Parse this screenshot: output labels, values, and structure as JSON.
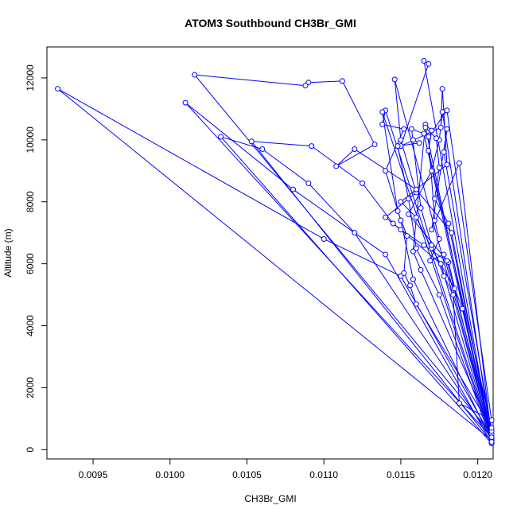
{
  "chart_data": {
    "type": "line",
    "title": "ATOM3 Southbound CH3Br_GMI",
    "xlabel": "CH3Br_GMI",
    "ylabel": "Altitude (m)",
    "xlim": [
      0.0092,
      0.0121
    ],
    "ylim": [
      -300,
      13000
    ],
    "x_ticks": [
      0.0095,
      0.01,
      0.0105,
      0.011,
      0.0115,
      0.012
    ],
    "x_tick_labels": [
      "0.0095",
      "0.0100",
      "0.0105",
      "0.0110",
      "0.0115",
      "0.0120"
    ],
    "y_ticks": [
      0,
      2000,
      4000,
      6000,
      8000,
      10000,
      12000
    ],
    "y_tick_labels": [
      "0",
      "2000",
      "4000",
      "6000",
      "8000",
      "10000",
      "12000"
    ],
    "grid": false,
    "legend": "none",
    "series": [
      {
        "color": "#0000ff",
        "marker": "open-circle",
        "points": [
          [
            0.01209,
            300
          ],
          [
            0.0119,
            4550
          ],
          [
            0.01185,
            5200
          ],
          [
            0.0117,
            6500
          ],
          [
            0.0116,
            7500
          ],
          [
            0.0115,
            8000
          ],
          [
            0.0118,
            9200
          ],
          [
            0.01177,
            11650
          ],
          [
            0.01176,
            10400
          ],
          [
            0.0115,
            9800
          ],
          [
            0.01168,
            12450
          ],
          [
            0.01165,
            12550
          ],
          [
            0.01209,
            250
          ],
          [
            0.01181,
            6050
          ],
          [
            0.01165,
            6600
          ],
          [
            0.0115,
            7100
          ],
          [
            0.0114,
            7500
          ],
          [
            0.0116,
            8300
          ],
          [
            0.0115,
            10000
          ],
          [
            0.01146,
            11950
          ],
          [
            0.01209,
            350
          ],
          [
            0.0112,
            7000
          ],
          [
            0.0109,
            8600
          ],
          [
            0.0106,
            9700
          ],
          [
            0.01033,
            10100
          ],
          [
            0.01209,
            200
          ],
          [
            0.0114,
            6300
          ],
          [
            0.0108,
            8400
          ],
          [
            0.0101,
            11200
          ],
          [
            0.01209,
            400
          ],
          [
            0.0115,
            5600
          ],
          [
            0.011,
            6800
          ],
          [
            0.00927,
            11650
          ],
          [
            0.01209,
            300
          ],
          [
            0.01176,
            6000
          ],
          [
            0.01145,
            7300
          ],
          [
            0.01125,
            8600
          ],
          [
            0.01092,
            9800
          ],
          [
            0.01053,
            9950
          ],
          [
            0.01209,
            250
          ],
          [
            0.01183,
            7000
          ],
          [
            0.0116,
            8400
          ],
          [
            0.0112,
            9700
          ],
          [
            0.01108,
            9150
          ],
          [
            0.01133,
            9850
          ],
          [
            0.01112,
            11900
          ],
          [
            0.0109,
            11850
          ],
          [
            0.01088,
            11750
          ],
          [
            0.01016,
            12100
          ],
          [
            0.01209,
            500
          ],
          [
            0.0118,
            6100
          ],
          [
            0.01155,
            7600
          ],
          [
            0.0117,
            9000
          ],
          [
            0.01175,
            10000
          ],
          [
            0.01177,
            10900
          ],
          [
            0.01209,
            280
          ],
          [
            0.01158,
            5500
          ],
          [
            0.0115,
            7400
          ],
          [
            0.0114,
            9000
          ],
          [
            0.01152,
            10350
          ],
          [
            0.01138,
            10500
          ],
          [
            0.0114,
            10950
          ],
          [
            0.01209,
            350
          ],
          [
            0.01188,
            9250
          ],
          [
            0.0117,
            7100
          ],
          [
            0.0118,
            10350
          ],
          [
            0.01178,
            9600
          ],
          [
            0.01209,
            600
          ],
          [
            0.01163,
            5800
          ],
          [
            0.01158,
            6400
          ],
          [
            0.01166,
            10500
          ],
          [
            0.0117,
            10300
          ],
          [
            0.01168,
            9650
          ],
          [
            0.01209,
            700
          ],
          [
            0.0116,
            4700
          ],
          [
            0.01156,
            5300
          ],
          [
            0.01152,
            5700
          ],
          [
            0.01154,
            6900
          ],
          [
            0.01148,
            7700
          ],
          [
            0.01138,
            10900
          ],
          [
            0.01209,
            300
          ],
          [
            0.01178,
            6300
          ],
          [
            0.01169,
            6100
          ],
          [
            0.01175,
            6800
          ],
          [
            0.01172,
            7400
          ],
          [
            0.01168,
            10100
          ],
          [
            0.0118,
            10950
          ],
          [
            0.01209,
            950
          ],
          [
            0.01188,
            1500
          ],
          [
            0.01184,
            5000
          ],
          [
            0.01178,
            5600
          ],
          [
            0.0117,
            6600
          ],
          [
            0.01163,
            7800
          ],
          [
            0.01157,
            10350
          ],
          [
            0.01165,
            10200
          ],
          [
            0.01209,
            400
          ],
          [
            0.01181,
            7300
          ],
          [
            0.01172,
            8100
          ],
          [
            0.01175,
            9100
          ],
          [
            0.01173,
            10050
          ],
          [
            0.01166,
            10400
          ],
          [
            0.01209,
            250
          ],
          [
            0.01175,
            5000
          ],
          [
            0.0116,
            6500
          ],
          [
            0.01155,
            8100
          ],
          [
            0.01148,
            9800
          ],
          [
            0.01162,
            9900
          ],
          [
            0.01158,
            10000
          ]
        ]
      }
    ]
  }
}
